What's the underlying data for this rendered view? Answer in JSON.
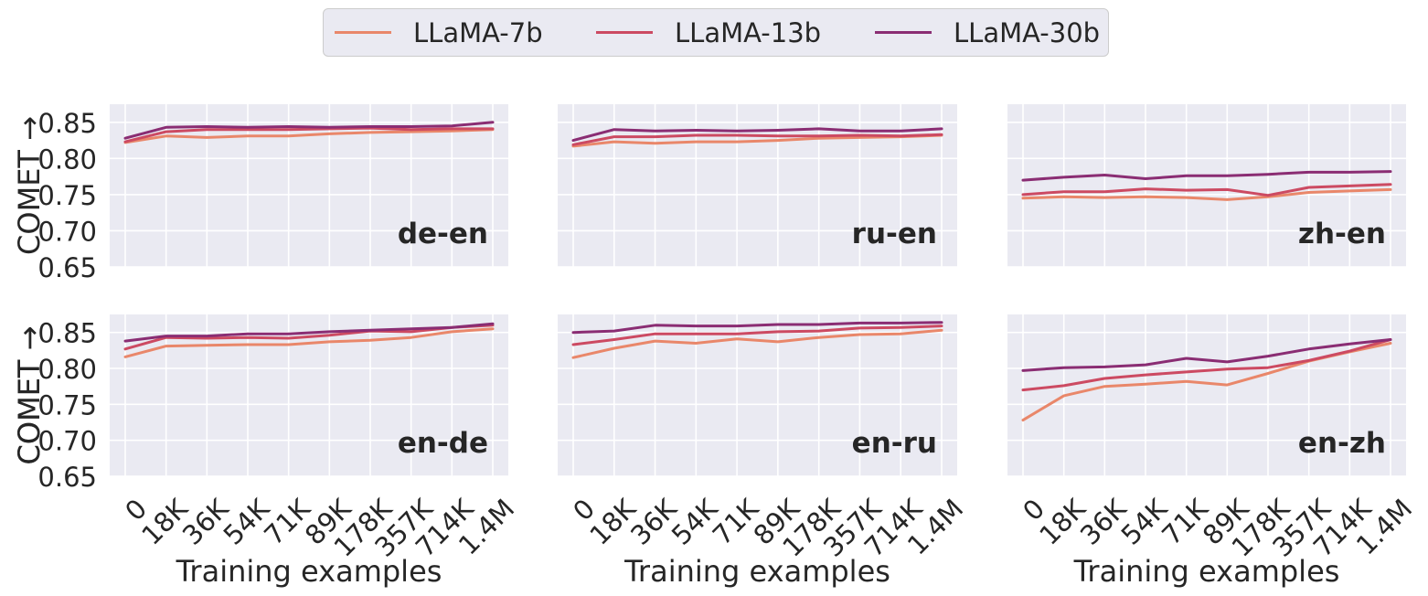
{
  "legend": {
    "entries": [
      {
        "label": "LLaMA-7b",
        "color": "#e9876a"
      },
      {
        "label": "LLaMA-13b",
        "color": "#cc4a62"
      },
      {
        "label": "LLaMA-30b",
        "color": "#8a2d73"
      }
    ]
  },
  "chart_data": [
    {
      "type": "line",
      "panel": "de-en",
      "categories": [
        "0",
        "18K",
        "36K",
        "54K",
        "71K",
        "89K",
        "178K",
        "357K",
        "714K",
        "1.4M"
      ],
      "series": [
        {
          "name": "LLaMA-7b",
          "values": [
            0.822,
            0.831,
            0.829,
            0.831,
            0.831,
            0.834,
            0.836,
            0.837,
            0.838,
            0.84
          ]
        },
        {
          "name": "LLaMA-13b",
          "values": [
            0.823,
            0.837,
            0.84,
            0.84,
            0.84,
            0.841,
            0.842,
            0.84,
            0.841,
            0.841
          ]
        },
        {
          "name": "LLaMA-30b",
          "values": [
            0.828,
            0.843,
            0.844,
            0.843,
            0.844,
            0.843,
            0.844,
            0.844,
            0.845,
            0.85
          ]
        }
      ],
      "ylabel": "COMET →",
      "xlabel": "",
      "ylim": [
        0.65,
        0.875
      ],
      "yticks": [
        "0.65",
        "0.70",
        "0.75",
        "0.80",
        "0.85"
      ],
      "grid": true
    },
    {
      "type": "line",
      "panel": "ru-en",
      "categories": [
        "0",
        "18K",
        "36K",
        "54K",
        "71K",
        "89K",
        "178K",
        "357K",
        "714K",
        "1.4M"
      ],
      "series": [
        {
          "name": "LLaMA-7b",
          "values": [
            0.817,
            0.823,
            0.821,
            0.823,
            0.823,
            0.825,
            0.828,
            0.829,
            0.83,
            0.832
          ]
        },
        {
          "name": "LLaMA-13b",
          "values": [
            0.819,
            0.83,
            0.83,
            0.832,
            0.832,
            0.831,
            0.831,
            0.832,
            0.831,
            0.833
          ]
        },
        {
          "name": "LLaMA-30b",
          "values": [
            0.825,
            0.84,
            0.838,
            0.839,
            0.838,
            0.839,
            0.841,
            0.838,
            0.838,
            0.841
          ]
        }
      ],
      "ylabel": "",
      "xlabel": "",
      "ylim": [
        0.65,
        0.875
      ],
      "grid": true
    },
    {
      "type": "line",
      "panel": "zh-en",
      "categories": [
        "0",
        "18K",
        "36K",
        "54K",
        "71K",
        "89K",
        "178K",
        "357K",
        "714K",
        "1.4M"
      ],
      "series": [
        {
          "name": "LLaMA-7b",
          "values": [
            0.745,
            0.747,
            0.746,
            0.747,
            0.746,
            0.743,
            0.747,
            0.753,
            0.755,
            0.757
          ]
        },
        {
          "name": "LLaMA-13b",
          "values": [
            0.75,
            0.754,
            0.754,
            0.758,
            0.756,
            0.757,
            0.749,
            0.76,
            0.762,
            0.764
          ]
        },
        {
          "name": "LLaMA-30b",
          "values": [
            0.77,
            0.774,
            0.777,
            0.772,
            0.776,
            0.776,
            0.778,
            0.781,
            0.781,
            0.782
          ]
        }
      ],
      "ylabel": "",
      "xlabel": "",
      "ylim": [
        0.65,
        0.875
      ],
      "grid": true
    },
    {
      "type": "line",
      "panel": "en-de",
      "categories": [
        "0",
        "18K",
        "36K",
        "54K",
        "71K",
        "89K",
        "178K",
        "357K",
        "714K",
        "1.4M"
      ],
      "series": [
        {
          "name": "LLaMA-7b",
          "values": [
            0.816,
            0.831,
            0.832,
            0.833,
            0.833,
            0.837,
            0.839,
            0.843,
            0.851,
            0.855
          ]
        },
        {
          "name": "LLaMA-13b",
          "values": [
            0.827,
            0.843,
            0.842,
            0.843,
            0.842,
            0.846,
            0.852,
            0.851,
            0.857,
            0.86
          ]
        },
        {
          "name": "LLaMA-30b",
          "values": [
            0.838,
            0.845,
            0.845,
            0.848,
            0.848,
            0.851,
            0.853,
            0.855,
            0.857,
            0.862
          ]
        }
      ],
      "ylabel": "COMET →",
      "xlabel": "Training examples",
      "ylim": [
        0.65,
        0.875
      ],
      "yticks": [
        "0.65",
        "0.70",
        "0.75",
        "0.80",
        "0.85"
      ],
      "grid": true
    },
    {
      "type": "line",
      "panel": "en-ru",
      "categories": [
        "0",
        "18K",
        "36K",
        "54K",
        "71K",
        "89K",
        "178K",
        "357K",
        "714K",
        "1.4M"
      ],
      "series": [
        {
          "name": "LLaMA-7b",
          "values": [
            0.815,
            0.828,
            0.838,
            0.835,
            0.841,
            0.837,
            0.843,
            0.847,
            0.848,
            0.853
          ]
        },
        {
          "name": "LLaMA-13b",
          "values": [
            0.833,
            0.84,
            0.848,
            0.848,
            0.848,
            0.851,
            0.852,
            0.856,
            0.857,
            0.859
          ]
        },
        {
          "name": "LLaMA-30b",
          "values": [
            0.85,
            0.852,
            0.86,
            0.859,
            0.859,
            0.861,
            0.861,
            0.863,
            0.863,
            0.864
          ]
        }
      ],
      "ylabel": "",
      "xlabel": "Training examples",
      "ylim": [
        0.65,
        0.875
      ],
      "grid": true
    },
    {
      "type": "line",
      "panel": "en-zh",
      "categories": [
        "0",
        "18K",
        "36K",
        "54K",
        "71K",
        "89K",
        "178K",
        "357K",
        "714K",
        "1.4M"
      ],
      "series": [
        {
          "name": "LLaMA-7b",
          "values": [
            0.728,
            0.762,
            0.775,
            0.778,
            0.782,
            0.777,
            0.793,
            0.81,
            0.823,
            0.835
          ]
        },
        {
          "name": "LLaMA-13b",
          "values": [
            0.77,
            0.776,
            0.786,
            0.791,
            0.795,
            0.799,
            0.801,
            0.811,
            0.824,
            0.84
          ]
        },
        {
          "name": "LLaMA-30b",
          "values": [
            0.797,
            0.801,
            0.802,
            0.805,
            0.814,
            0.809,
            0.817,
            0.827,
            0.834,
            0.84
          ]
        }
      ],
      "ylabel": "COMET →",
      "xlabel": "Training examples",
      "ylim": [
        0.65,
        0.875
      ],
      "grid": true
    }
  ]
}
